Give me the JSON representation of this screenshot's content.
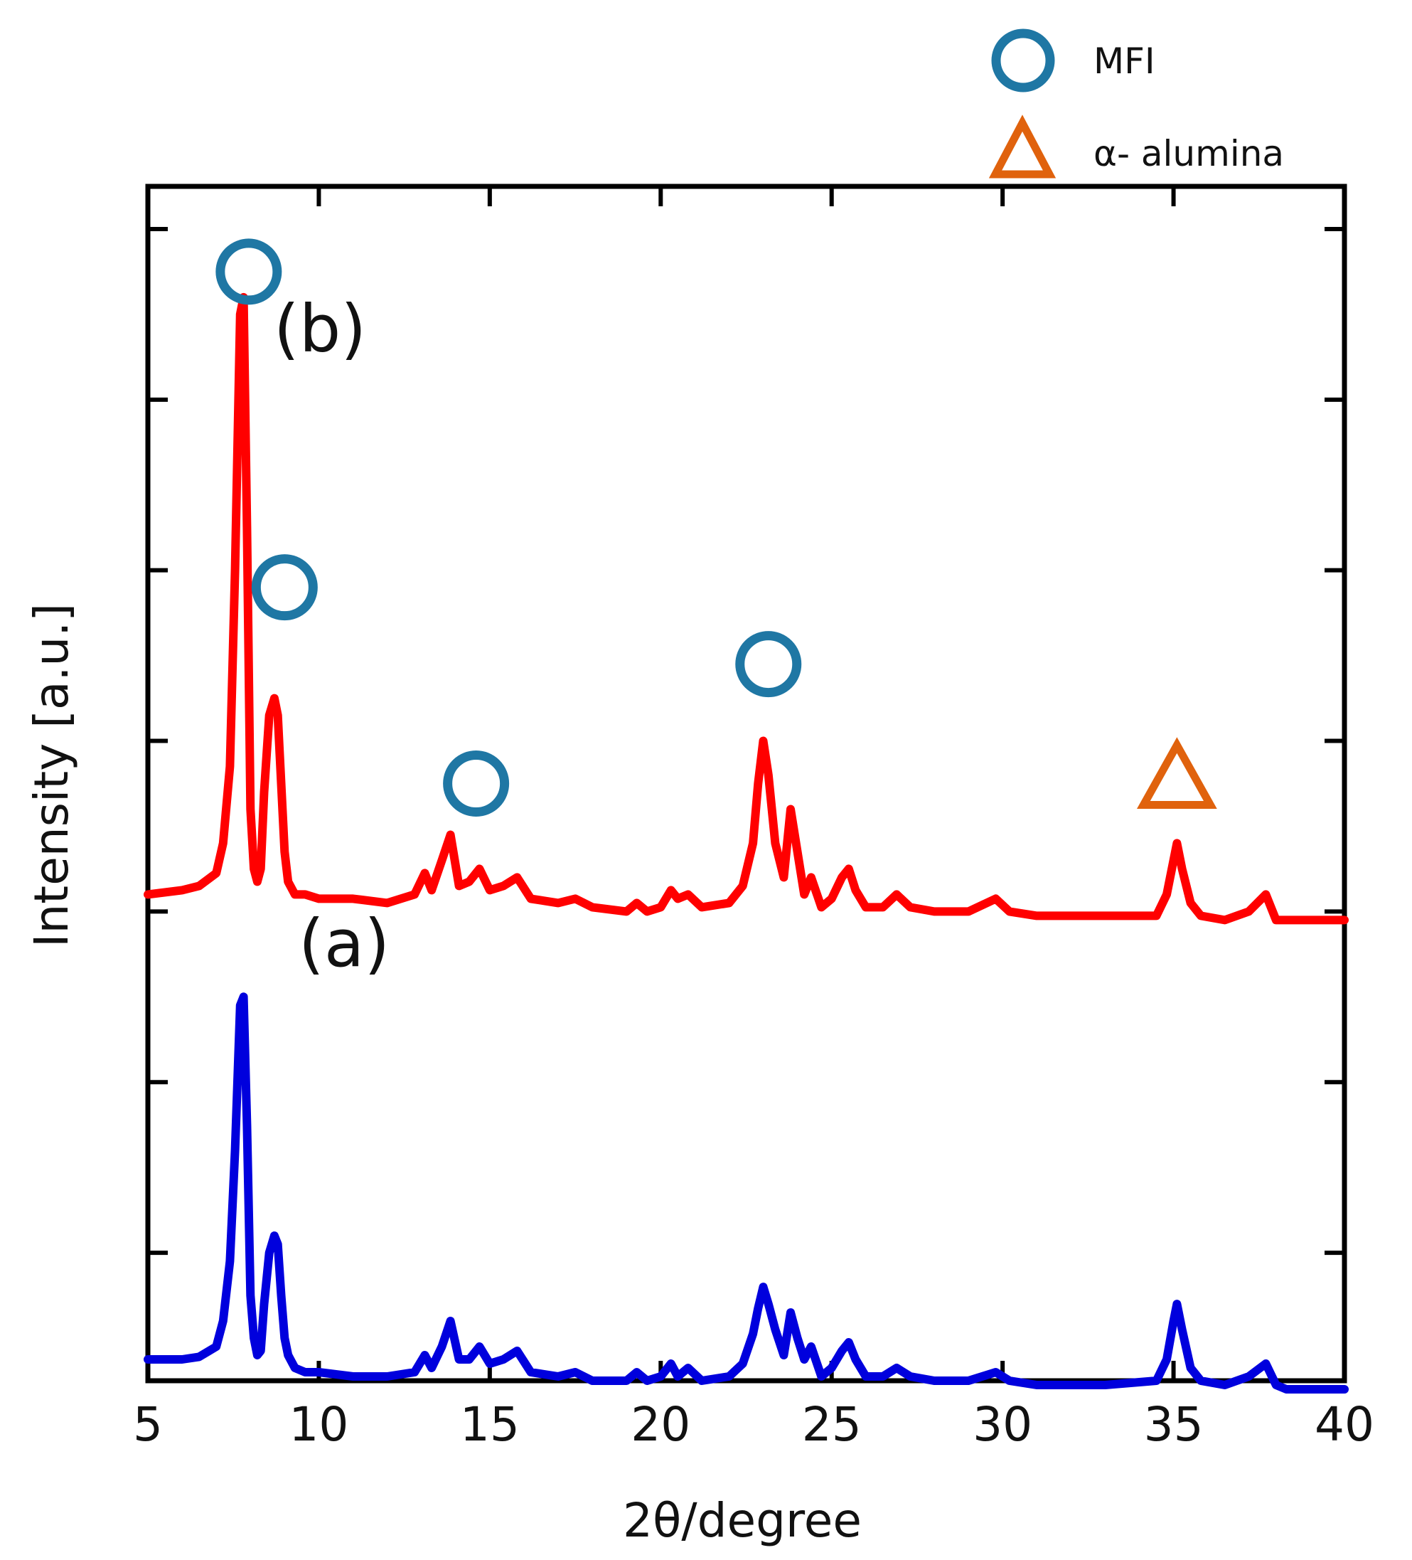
{
  "chart_data": {
    "type": "line",
    "title": "",
    "xlabel": "2θ/degree",
    "ylabel": "Intensity [a.u.]",
    "xlim": [
      5,
      40
    ],
    "ylim": [
      0,
      140
    ],
    "xticks": [
      5,
      10,
      15,
      20,
      25,
      30,
      35,
      40
    ],
    "xtick_labels": [
      "5",
      "10",
      "15",
      "20",
      "25",
      "30",
      "35",
      "40"
    ],
    "yticks": [
      15,
      35,
      55,
      75,
      95,
      115,
      135
    ],
    "show_ytick_labels": false,
    "grid": false,
    "legend": {
      "position": "top-right",
      "entries": [
        {
          "label": "MFI",
          "marker": "circle",
          "color": "#1f77a4"
        },
        {
          "label": "α- alumina",
          "marker": "triangle",
          "color": "#e0620d"
        }
      ]
    },
    "series": [
      {
        "name": "(a)",
        "color": "#0000dd",
        "x": [
          5,
          6,
          6.5,
          7,
          7.2,
          7.4,
          7.55,
          7.7,
          7.8,
          7.9,
          8.0,
          8.1,
          8.2,
          8.3,
          8.4,
          8.55,
          8.7,
          8.8,
          8.9,
          9.0,
          9.1,
          9.3,
          9.6,
          10,
          11,
          12,
          12.8,
          13.1,
          13.3,
          13.6,
          13.85,
          14.1,
          14.4,
          14.7,
          15.0,
          15.4,
          15.8,
          16.2,
          17,
          17.5,
          18,
          19,
          19.3,
          19.6,
          20,
          20.3,
          20.5,
          20.8,
          21.2,
          22.0,
          22.4,
          22.7,
          22.85,
          23.0,
          23.15,
          23.35,
          23.6,
          23.8,
          24.0,
          24.2,
          24.4,
          24.7,
          25.0,
          25.3,
          25.5,
          25.7,
          26.0,
          26.5,
          26.9,
          27.3,
          28,
          29,
          29.8,
          30.2,
          31,
          33,
          34.5,
          34.8,
          35.0,
          35.1,
          35.25,
          35.5,
          35.8,
          36.5,
          37.2,
          37.7,
          38.0,
          38.3,
          40
        ],
        "y": [
          2.5,
          2.5,
          2.8,
          4.0,
          7,
          14,
          27,
          44,
          45,
          30,
          10,
          5,
          3,
          3.5,
          9,
          15,
          17,
          16,
          10,
          5,
          3,
          1.5,
          1.0,
          1.0,
          0.5,
          0.5,
          1.0,
          3.0,
          1.5,
          4.0,
          7.0,
          2.5,
          2.5,
          4.0,
          2.0,
          2.5,
          3.5,
          1.0,
          0.5,
          1.0,
          0,
          0,
          1.0,
          0,
          0.5,
          2.0,
          0.5,
          1.5,
          0,
          0.5,
          2.0,
          5.5,
          8.5,
          11,
          9,
          6,
          3.0,
          8.0,
          5.0,
          2.5,
          4.0,
          0.5,
          1.5,
          3.5,
          4.5,
          2.5,
          0.5,
          0.5,
          1.5,
          0.5,
          0,
          0,
          1.0,
          0,
          -0.5,
          -0.5,
          0,
          2.5,
          7.0,
          9.0,
          6.0,
          1.5,
          0,
          -0.5,
          0.5,
          2.0,
          -0.5,
          -1.0,
          -1.0
        ]
      },
      {
        "name": "(b)",
        "color": "#ff0000",
        "x": [
          5,
          6,
          6.5,
          7,
          7.2,
          7.4,
          7.55,
          7.7,
          7.8,
          7.9,
          8.0,
          8.1,
          8.2,
          8.3,
          8.4,
          8.55,
          8.7,
          8.8,
          8.9,
          9.0,
          9.1,
          9.3,
          9.6,
          10,
          11,
          12,
          12.8,
          13.1,
          13.3,
          13.6,
          13.85,
          14.1,
          14.4,
          14.7,
          15.0,
          15.4,
          15.8,
          16.2,
          17,
          17.5,
          18,
          19,
          19.3,
          19.6,
          20,
          20.3,
          20.5,
          20.8,
          21.2,
          22.0,
          22.4,
          22.7,
          22.85,
          23.0,
          23.15,
          23.35,
          23.6,
          23.8,
          24.0,
          24.2,
          24.4,
          24.7,
          25.0,
          25.3,
          25.5,
          25.7,
          26.0,
          26.5,
          26.9,
          27.3,
          28,
          29,
          29.8,
          30.2,
          31,
          33,
          34.5,
          34.8,
          35.0,
          35.1,
          35.25,
          35.5,
          35.8,
          36.5,
          37.2,
          37.7,
          38.0,
          38.3,
          40
        ],
        "y": [
          57,
          57.5,
          58,
          59.5,
          63,
          72,
          95,
          125,
          127,
          100,
          67,
          60,
          58.5,
          60,
          69,
          78,
          80,
          78,
          70,
          62,
          58.5,
          57,
          57,
          56.5,
          56.5,
          56,
          57,
          59.5,
          57.5,
          61,
          64,
          58,
          58.5,
          60,
          57.5,
          58,
          59,
          56.5,
          56,
          56.5,
          55.5,
          55,
          56,
          55,
          55.5,
          57.5,
          56.5,
          57,
          55.5,
          56,
          58,
          63,
          70,
          75,
          71,
          63,
          59,
          67,
          62,
          57,
          59,
          55.5,
          56.5,
          59,
          60,
          57.5,
          55.5,
          55.5,
          57,
          55.5,
          55,
          55,
          56.5,
          55,
          54.5,
          54.5,
          54.5,
          57,
          61,
          63,
          60,
          56,
          54.5,
          54,
          55,
          57,
          54,
          54,
          54
        ]
      }
    ],
    "curve_labels": [
      "(a)",
      "(b)"
    ],
    "annotations": [
      {
        "type": "mfi-circle",
        "x": 7.95,
        "y": 130
      },
      {
        "type": "mfi-circle",
        "x": 9.0,
        "y": 93
      },
      {
        "type": "mfi-circle",
        "x": 14.6,
        "y": 70
      },
      {
        "type": "mfi-circle",
        "x": 23.15,
        "y": 84
      },
      {
        "type": "alumina-triangle",
        "x": 35.1,
        "y": 71
      }
    ]
  }
}
